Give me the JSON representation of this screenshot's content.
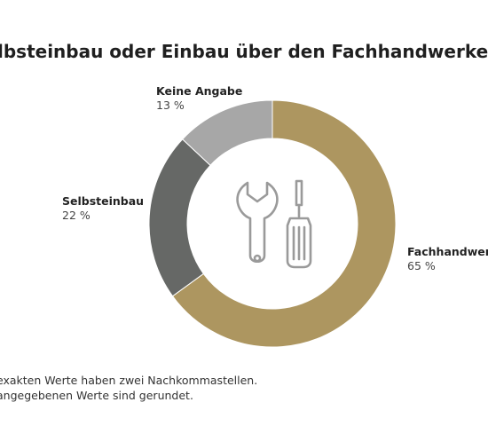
{
  "chart_data": {
    "type": "pie",
    "style": "donut",
    "title": "lbsteinbau oder Einbau über den Fachhandwerker?",
    "categories": [
      "Fachhandwerker",
      "Selbsteinbau",
      "Keine Angabe"
    ],
    "values": [
      65,
      22,
      13
    ],
    "value_labels": [
      "65 %",
      "22 %",
      "13 %"
    ],
    "colors": [
      "#ad9660",
      "#666866",
      "#a7a7a7"
    ],
    "center_icon": "wrench-and-screwdriver-icon",
    "icon_color": "#9a9a9a",
    "notes": [
      "exakten Werte haben zwei Nachkommastellen.",
      "angegebenen Werte sind gerundet."
    ]
  }
}
